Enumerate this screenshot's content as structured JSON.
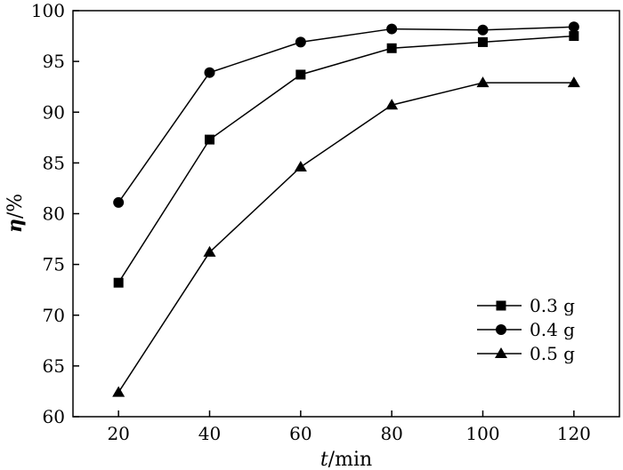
{
  "chart_data": {
    "type": "line",
    "xlabel_italic": "t",
    "xlabel_rest": "/min",
    "ylabel_italic": "η",
    "ylabel_rest": "/%",
    "xlim": [
      10,
      130
    ],
    "ylim": [
      60,
      100
    ],
    "xticks": [
      "20",
      "40",
      "60",
      "80",
      "100",
      "120"
    ],
    "xtick_values": [
      20,
      40,
      60,
      80,
      100,
      120
    ],
    "yticks": [
      "60",
      "65",
      "70",
      "75",
      "80",
      "85",
      "90",
      "95",
      "100"
    ],
    "ytick_values": [
      60,
      65,
      70,
      75,
      80,
      85,
      90,
      95,
      100
    ],
    "x": [
      20,
      40,
      60,
      80,
      100,
      120
    ],
    "legend_position": "bottom-right",
    "grid": false,
    "series": [
      {
        "name": "0.3 g",
        "marker": "square",
        "values": [
          73.2,
          87.3,
          93.7,
          96.3,
          96.9,
          97.5
        ]
      },
      {
        "name": "0.4 g",
        "marker": "circle",
        "values": [
          81.1,
          93.9,
          96.9,
          98.2,
          98.1,
          98.4
        ]
      },
      {
        "name": "0.5 g",
        "marker": "triangle",
        "values": [
          62.4,
          76.2,
          84.6,
          90.7,
          92.9,
          92.9
        ]
      }
    ]
  }
}
